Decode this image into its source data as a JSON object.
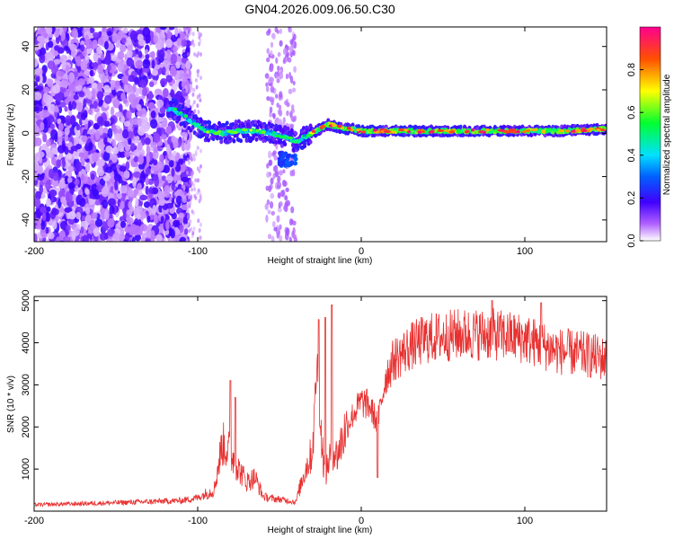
{
  "title": "GN04.2026.009.06.50.C30",
  "chart_data": [
    {
      "type": "heatmap",
      "xlabel": "Height of straight line (km)",
      "ylabel": "Frequency (Hz)",
      "xlim": [
        -200,
        150
      ],
      "ylim": [
        -50,
        49
      ],
      "xticks": [
        -200,
        -100,
        0,
        100
      ],
      "xtick_labels": [
        "-200",
        "-100",
        "0",
        "100"
      ],
      "yticks": [
        -40,
        -20,
        0,
        20,
        40
      ],
      "ytick_labels": [
        "-40",
        "-20",
        "0",
        "20",
        "40"
      ],
      "colorbar": {
        "label": "Normalized spectral amplitude",
        "range": [
          0,
          1
        ],
        "ticks": [
          0,
          0.2,
          0.4,
          0.6,
          0.8
        ],
        "tick_labels": [
          "0.0",
          "0.2",
          "0.4",
          "0.6",
          "0.8"
        ]
      },
      "ridge": {
        "x": [
          -115,
          -105,
          -95,
          -85,
          -75,
          -65,
          -55,
          -45,
          -40,
          -35,
          -30,
          -25,
          -20,
          -15,
          -10,
          -5,
          0,
          10,
          20,
          40,
          60,
          80,
          100,
          120,
          150
        ],
        "frequency": [
          11,
          6,
          1,
          0,
          1,
          1,
          0,
          -2,
          -4,
          -2,
          0,
          2,
          4,
          3,
          2,
          2,
          1,
          1,
          1,
          1,
          1,
          1,
          1,
          1,
          2
        ]
      },
      "colors": [
        "#ffffff",
        "#8a00ff",
        "#0000ff",
        "#00d8ff",
        "#00ff40",
        "#ffff00",
        "#ff6000",
        "#ff0080"
      ]
    },
    {
      "type": "line",
      "xlabel": "Height of straight line (km)",
      "ylabel": "SNR (10 * v/v)",
      "xlim": [
        -200,
        150
      ],
      "ylim": [
        0,
        5100
      ],
      "xticks": [
        -200,
        -100,
        0,
        100
      ],
      "xtick_labels": [
        "-200",
        "-100",
        "0",
        "100"
      ],
      "yticks": [
        1000,
        2000,
        3000,
        4000,
        5000
      ],
      "ytick_labels": [
        "1000",
        "2000",
        "3000",
        "4000",
        "5000"
      ],
      "series": [
        {
          "name": "SNR",
          "color": "#e83030",
          "envelope_x": [
            -200,
            -150,
            -110,
            -100,
            -90,
            -85,
            -80,
            -75,
            -70,
            -65,
            -60,
            -55,
            -50,
            -45,
            -40,
            -35,
            -30,
            -27,
            -25,
            -22,
            -20,
            -17,
            -15,
            -10,
            -5,
            0,
            5,
            10,
            15,
            20,
            30,
            40,
            50,
            60,
            80,
            100,
            120,
            140,
            150
          ],
          "envelope_y": [
            150,
            200,
            250,
            320,
            500,
            1600,
            1400,
            1000,
            700,
            800,
            350,
            300,
            280,
            250,
            220,
            900,
            1400,
            3600,
            2000,
            800,
            1200,
            1500,
            1300,
            1900,
            2300,
            2600,
            2500,
            2100,
            3200,
            3600,
            3900,
            4100,
            4150,
            4200,
            4200,
            4100,
            3800,
            3700,
            3600
          ],
          "spikes": [
            {
              "x": -80,
              "y": 3100
            },
            {
              "x": -77,
              "y": 2700
            },
            {
              "x": -26,
              "y": 4550
            },
            {
              "x": -22,
              "y": 4600
            },
            {
              "x": -18,
              "y": 4900
            },
            {
              "x": 10,
              "y": 800
            },
            {
              "x": 80,
              "y": 5000
            },
            {
              "x": 110,
              "y": 4950
            }
          ]
        }
      ]
    }
  ]
}
